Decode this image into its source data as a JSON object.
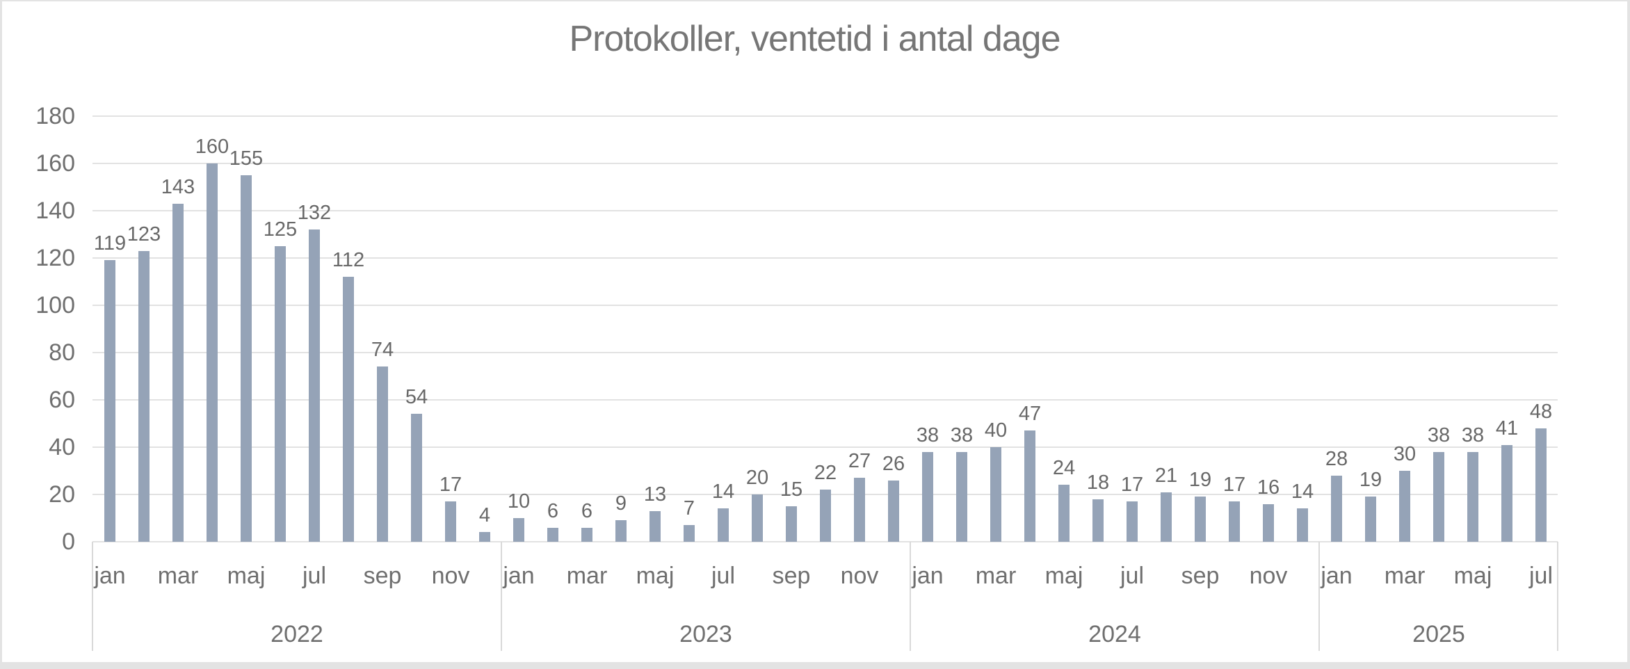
{
  "title": "Protokoller, ventetid i antal dage",
  "colors": {
    "bar": "#95A3B7",
    "gridline": "#E2E2E2",
    "separator": "#D9D9D9",
    "title_text": "#767676",
    "data_label_text": "#686868",
    "axis_text": "#6F6F6F",
    "border": "#E3E3E3"
  },
  "chart_data": {
    "type": "bar",
    "title": "Protokoller, ventetid i antal dage",
    "xlabel": "",
    "ylabel": "",
    "ylim": [
      0,
      180
    ],
    "y_tick_step": 20,
    "y_tick_labels": [
      "0",
      "20",
      "40",
      "60",
      "80",
      "100",
      "120",
      "140",
      "160",
      "180"
    ],
    "grid": true,
    "legend": "none",
    "data_labels": "outside-end",
    "x_tick_policy": "every-other-month",
    "groups": [
      {
        "year": "2022",
        "months": [
          "jan",
          "feb",
          "mar",
          "apr",
          "maj",
          "jun",
          "jul",
          "aug",
          "sep",
          "okt",
          "nov",
          "dec"
        ],
        "shown_month_ticks": [
          "jan",
          "mar",
          "maj",
          "jul",
          "sep",
          "nov"
        ],
        "values": [
          119,
          123,
          143,
          160,
          155,
          125,
          132,
          112,
          74,
          54,
          17,
          4
        ]
      },
      {
        "year": "2023",
        "months": [
          "jan",
          "feb",
          "mar",
          "apr",
          "maj",
          "jun",
          "jul",
          "aug",
          "sep",
          "okt",
          "nov",
          "dec"
        ],
        "shown_month_ticks": [
          "jan",
          "mar",
          "maj",
          "jul",
          "sep",
          "nov"
        ],
        "values": [
          10,
          6,
          6,
          9,
          13,
          7,
          14,
          20,
          15,
          22,
          27,
          26
        ]
      },
      {
        "year": "2024",
        "months": [
          "jan",
          "feb",
          "mar",
          "apr",
          "maj",
          "jun",
          "jul",
          "aug",
          "sep",
          "okt",
          "nov",
          "dec"
        ],
        "shown_month_ticks": [
          "jan",
          "mar",
          "maj",
          "jul",
          "sep",
          "nov"
        ],
        "values": [
          38,
          38,
          40,
          47,
          24,
          18,
          17,
          21,
          19,
          17,
          16,
          14
        ]
      },
      {
        "year": "2025",
        "months": [
          "jan",
          "feb",
          "mar",
          "apr",
          "maj",
          "jun",
          "jul"
        ],
        "shown_month_ticks": [
          "jan",
          "mar",
          "maj",
          "jul"
        ],
        "values": [
          28,
          19,
          30,
          38,
          38,
          41,
          48
        ]
      }
    ]
  }
}
